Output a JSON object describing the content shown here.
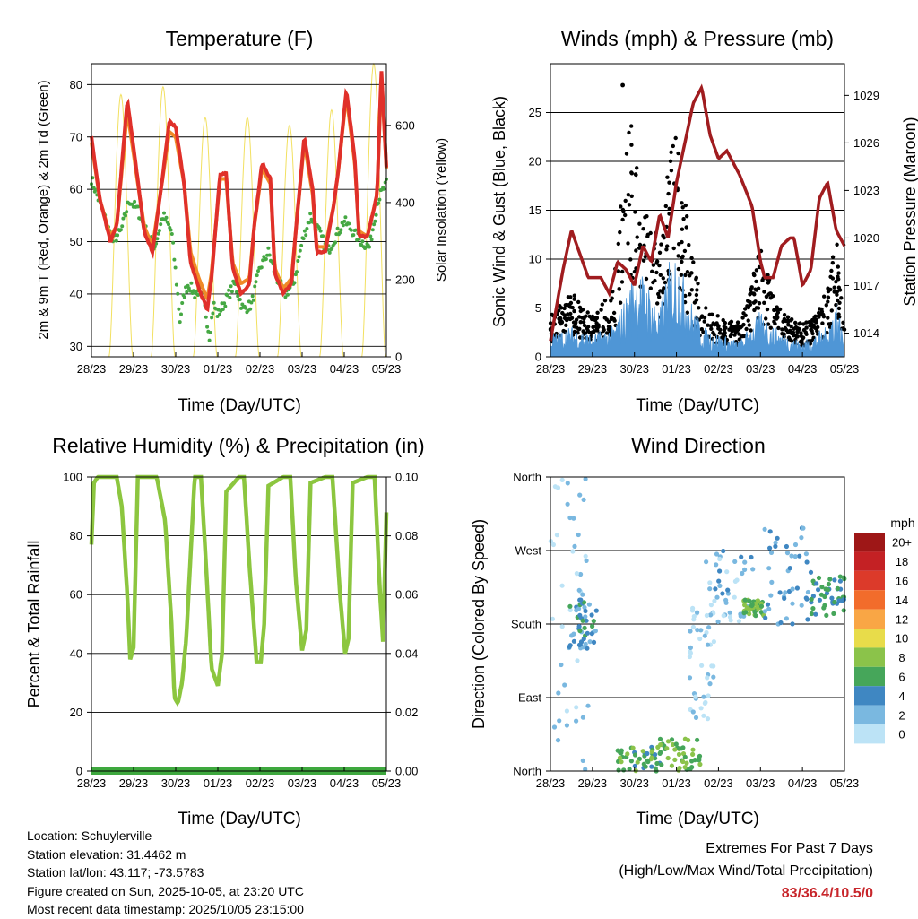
{
  "x_ticks": [
    "28/23",
    "29/23",
    "30/23",
    "01/23",
    "02/23",
    "03/23",
    "04/23",
    "05/23"
  ],
  "x_label": "Time (Day/UTC)",
  "info": {
    "location": "Location: Schuylerville",
    "elevation": "Station elevation: 31.4462 m",
    "latlon": "Station lat/lon: 43.117; -73.5783",
    "created": "Figure created on Sun, 2025-10-05, at 23:20 UTC",
    "recent": "Most recent data timestamp: 2025/10/05 23:15:00"
  },
  "extremes": {
    "line1": "Extremes For Past 7 Days",
    "line2": "(High/Low/Max Wind/Total Precipitation)",
    "value": "83/36.4/10.5/0"
  },
  "colors": {
    "temp2m": "#e0302a",
    "temp9m": "#f08a28",
    "dewpoint": "#45a843",
    "solar": "#f2e060",
    "wind": "#4f96d6",
    "gust": "#000000",
    "pressure": "#a01c1f",
    "rh": "#8cc63f",
    "precip": "#3ea83e"
  },
  "chart_data": [
    {
      "type": "line",
      "title": "Temperature (F)",
      "xlabel": "Time (Day/UTC)",
      "ylabel": "2m & 9m T (Red, Orange) & 2m Td (Green)",
      "ylabel_right": "Solar Insolation (Yellow)",
      "x_range_days": [
        0,
        7
      ],
      "ylim": [
        28,
        84
      ],
      "yticks": [
        30,
        40,
        50,
        60,
        70,
        80
      ],
      "ylim_right": [
        0,
        760
      ],
      "yticks_right": [
        0,
        200,
        400,
        600
      ],
      "series": [
        {
          "name": "2m T",
          "color_key": "temp2m",
          "x": [
            0,
            0.2,
            0.45,
            0.6,
            0.85,
            1.05,
            1.25,
            1.45,
            1.65,
            1.85,
            2.0,
            2.2,
            2.35,
            2.55,
            2.75,
            2.85,
            3.05,
            3.2,
            3.35,
            3.55,
            3.75,
            3.85,
            4.05,
            4.25,
            4.35,
            4.55,
            4.75,
            4.85,
            5.05,
            5.25,
            5.35,
            5.55,
            5.75,
            5.85,
            6.05,
            6.25,
            6.35,
            6.55,
            6.78,
            6.88,
            7.0
          ],
          "values": [
            70,
            58,
            50,
            53,
            77,
            65,
            52,
            48,
            60,
            73,
            72,
            61,
            46,
            41,
            37,
            43,
            63,
            63,
            45,
            40,
            42,
            52,
            65,
            62,
            44,
            40,
            42,
            52,
            70,
            60,
            48,
            48,
            57,
            63,
            79,
            66,
            51,
            51,
            59,
            83,
            64
          ]
        },
        {
          "name": "9m T",
          "color_key": "temp9m",
          "x": [
            0,
            0.2,
            0.45,
            0.6,
            0.85,
            1.05,
            1.25,
            1.45,
            1.65,
            1.85,
            2.0,
            2.2,
            2.35,
            2.55,
            2.75,
            2.85,
            3.05,
            3.2,
            3.35,
            3.55,
            3.75,
            3.85,
            4.05,
            4.25,
            4.35,
            4.55,
            4.75,
            4.85,
            5.05,
            5.25,
            5.35,
            5.55,
            5.75,
            5.85,
            6.05,
            6.25,
            6.35,
            6.55,
            6.78,
            6.88,
            7.0
          ],
          "values": [
            69,
            58,
            51,
            53,
            75,
            64,
            53,
            49,
            60,
            71,
            70,
            61,
            48,
            43,
            39,
            44,
            62,
            62,
            46,
            42,
            43,
            52,
            64,
            61,
            45,
            41,
            43,
            52,
            69,
            59,
            49,
            49,
            57,
            63,
            78,
            65,
            52,
            51,
            59,
            82,
            64
          ]
        },
        {
          "name": "2m Td",
          "color_key": "dewpoint",
          "x": [
            0,
            0.3,
            0.5,
            0.7,
            0.9,
            1.1,
            1.3,
            1.5,
            1.7,
            1.9,
            2.0,
            2.1,
            2.2,
            2.3,
            2.45,
            2.6,
            2.7,
            2.8,
            2.9,
            3.0,
            3.2,
            3.4,
            3.6,
            3.8,
            4.0,
            4.2,
            4.4,
            4.6,
            4.8,
            5.0,
            5.2,
            5.4,
            5.6,
            5.8,
            6.0,
            6.2,
            6.4,
            6.6,
            6.8,
            7.0
          ],
          "values": [
            62,
            55,
            50,
            52,
            58,
            56,
            52,
            49,
            55,
            52,
            44,
            35,
            40,
            42,
            40,
            41,
            37,
            32,
            38,
            36,
            39,
            42,
            37,
            38,
            45,
            48,
            43,
            40,
            42,
            50,
            55,
            52,
            48,
            51,
            54,
            52,
            50,
            49,
            58,
            61
          ]
        },
        {
          "name": "Solar Insolation",
          "color_key": "solar",
          "axis": "right",
          "peak_x": [
            0.7,
            1.7,
            2.7,
            3.7,
            4.7,
            5.7,
            6.7
          ],
          "peak_values": [
            680,
            700,
            620,
            620,
            600,
            640,
            760
          ]
        }
      ]
    },
    {
      "type": "line+scatter",
      "title": "Winds (mph) & Pressure (mb)",
      "xlabel": "Time (Day/UTC)",
      "ylabel": "Sonic Wind & Gust (Blue, Black)",
      "ylabel_right": "Station Pressure (Maroon)",
      "x_range_days": [
        0,
        7
      ],
      "ylim": [
        0,
        30
      ],
      "yticks": [
        0,
        5,
        10,
        15,
        20,
        25
      ],
      "ylim_right": [
        1012.5,
        1031
      ],
      "yticks_right": [
        1014,
        1017,
        1020,
        1023,
        1026,
        1029
      ],
      "series": [
        {
          "name": "Wind",
          "color_key": "wind",
          "x": [
            0,
            0.5,
            1.0,
            1.5,
            1.8,
            2.0,
            2.3,
            2.6,
            2.8,
            3.0,
            3.3,
            3.6,
            4.0,
            4.5,
            5.0,
            5.3,
            5.6,
            6.0,
            6.3,
            6.6,
            6.8,
            7.0
          ],
          "values": [
            1.5,
            2,
            1.5,
            2,
            4,
            6,
            5,
            3,
            6,
            7,
            4,
            2,
            1.5,
            1,
            3,
            2,
            1.5,
            1,
            1.5,
            2,
            4,
            1
          ]
        },
        {
          "name": "Gust",
          "color_key": "gust",
          "x": [
            0,
            0.5,
            1.0,
            1.5,
            1.8,
            2.0,
            2.3,
            2.6,
            2.8,
            3.0,
            3.3,
            3.6,
            4.0,
            4.5,
            5.0,
            5.3,
            5.6,
            6.0,
            6.3,
            6.6,
            6.8,
            7.0
          ],
          "values": [
            3,
            5,
            3,
            5,
            16,
            18,
            12,
            8,
            14,
            17,
            9,
            4,
            3,
            2.5,
            8,
            5,
            3,
            2.5,
            3,
            5,
            9,
            2
          ],
          "max": 27.8
        },
        {
          "name": "Station Pressure",
          "color_key": "pressure",
          "axis": "right",
          "x": [
            0,
            0.3,
            0.5,
            0.7,
            0.9,
            1.2,
            1.4,
            1.6,
            1.8,
            2.0,
            2.2,
            2.4,
            2.6,
            2.8,
            3.0,
            3.2,
            3.4,
            3.6,
            3.8,
            4.0,
            4.2,
            4.5,
            4.8,
            5.0,
            5.1,
            5.3,
            5.5,
            5.7,
            5.8,
            6.0,
            6.2,
            6.4,
            6.6,
            6.8,
            7.0
          ],
          "values": [
            1013.5,
            1018,
            1020.5,
            1019,
            1017.5,
            1017.5,
            1016.5,
            1018.5,
            1018,
            1017,
            1019.5,
            1018.5,
            1021.5,
            1020,
            1023.5,
            1026,
            1028.5,
            1029.5,
            1026.5,
            1025,
            1025.5,
            1024,
            1022,
            1018.5,
            1017.5,
            1017.5,
            1019.5,
            1020,
            1020,
            1017,
            1018,
            1022.5,
            1023.5,
            1020.5,
            1019.5
          ]
        }
      ]
    },
    {
      "type": "line",
      "title": "Relative Humidity (%) & Precipitation (in)",
      "xlabel": "Time (Day/UTC)",
      "ylabel": "Percent & Total Rainfall",
      "x_range_days": [
        0,
        7
      ],
      "ylim": [
        0,
        100
      ],
      "yticks": [
        0,
        20,
        40,
        60,
        80,
        100
      ],
      "ylim_right": [
        0,
        0.1
      ],
      "yticks_right": [
        "0.00",
        "0.02",
        "0.04",
        "0.06",
        "0.08",
        "0.10"
      ],
      "series": [
        {
          "name": "Relative Humidity",
          "color_key": "rh",
          "x": [
            0,
            0.06,
            0.15,
            0.6,
            0.72,
            0.85,
            0.92,
            1.0,
            1.1,
            1.55,
            1.75,
            1.9,
            1.97,
            2.05,
            2.15,
            2.25,
            2.45,
            2.6,
            2.72,
            2.85,
            3.0,
            3.1,
            3.2,
            3.5,
            3.62,
            3.75,
            3.92,
            4.02,
            4.1,
            4.2,
            4.55,
            4.72,
            4.85,
            5.0,
            5.1,
            5.2,
            5.55,
            5.72,
            5.9,
            6.02,
            6.1,
            6.2,
            6.55,
            6.72,
            6.85,
            6.92,
            7.0
          ],
          "values": [
            77,
            98,
            100,
            100,
            90,
            60,
            38,
            42,
            100,
            100,
            85,
            50,
            25,
            23,
            30,
            45,
            100,
            100,
            70,
            35,
            29,
            40,
            95,
            100,
            100,
            70,
            37,
            37,
            50,
            97,
            100,
            100,
            65,
            41,
            48,
            98,
            100,
            100,
            60,
            40,
            45,
            98,
            100,
            100,
            60,
            44,
            88
          ]
        },
        {
          "name": "Total Precipitation",
          "color_key": "precip",
          "axis": "right",
          "x": [
            0,
            7
          ],
          "values": [
            0,
            0
          ]
        }
      ]
    },
    {
      "type": "scatter",
      "title": "Wind Direction",
      "xlabel": "Time (Day/UTC)",
      "ylabel": "Direction (Colored By Speed)",
      "x_range_days": [
        0,
        7
      ],
      "y_categories": [
        "North",
        "East",
        "South",
        "West",
        "North"
      ],
      "colorbar": {
        "unit": "mph",
        "labels": [
          "20+",
          "18",
          "16",
          "14",
          "12",
          "10",
          "8",
          "6",
          "4",
          "2",
          "0"
        ],
        "colors": [
          "#9e1717",
          "#c42124",
          "#dc3a2a",
          "#f26c2b",
          "#f9a645",
          "#e8dc4a",
          "#8bc34a",
          "#46a65a",
          "#3f87c2",
          "#7ab8e0",
          "#bce3f6"
        ]
      },
      "clusters": [
        {
          "x": [
            0.0,
            0.9
          ],
          "dir": [
            0,
            360
          ],
          "speed": 1
        },
        {
          "x": [
            0.45,
            1.1
          ],
          "dir": [
            150,
            210
          ],
          "speed": 4
        },
        {
          "x": [
            1.6,
            2.6
          ],
          "dir": [
            0,
            30
          ],
          "speed": 6
        },
        {
          "x": [
            2.6,
            3.6
          ],
          "dir": [
            0,
            40
          ],
          "speed": 7
        },
        {
          "x": [
            3.3,
            3.9
          ],
          "dir": [
            60,
            200
          ],
          "speed": 1
        },
        {
          "x": [
            3.7,
            4.9
          ],
          "dir": [
            180,
            270
          ],
          "speed": 2
        },
        {
          "x": [
            4.6,
            5.1
          ],
          "dir": [
            190,
            210
          ],
          "speed": 7
        },
        {
          "x": [
            5.1,
            6.2
          ],
          "dir": [
            180,
            300
          ],
          "speed": 3
        },
        {
          "x": [
            6.2,
            7.0
          ],
          "dir": [
            190,
            240
          ],
          "speed": 5
        }
      ]
    }
  ]
}
